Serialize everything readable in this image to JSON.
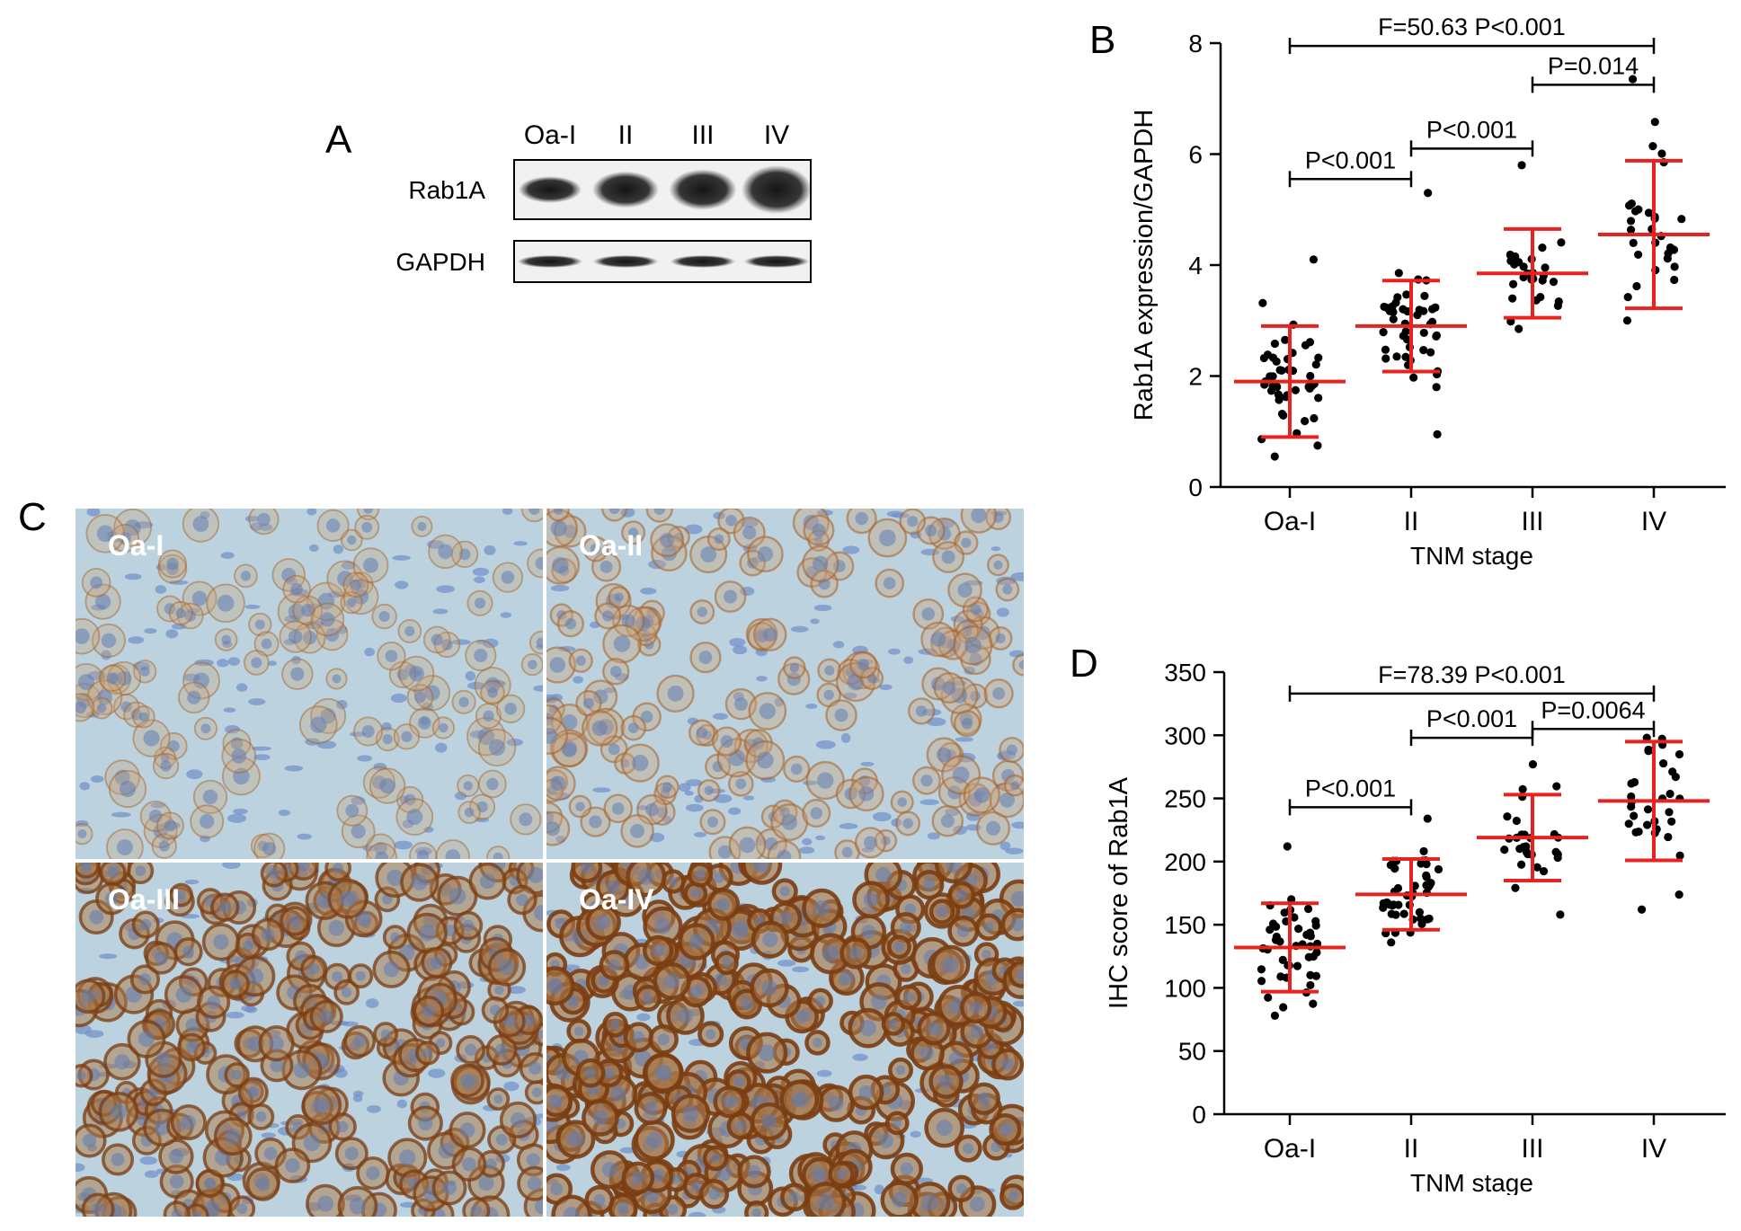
{
  "panels": {
    "A": "A",
    "B": "B",
    "C": "C",
    "D": "D"
  },
  "western_blot": {
    "lanes": [
      "Oa-I",
      "II",
      "III",
      "IV"
    ],
    "rows": [
      {
        "name": "Rab1A",
        "intensity": [
          0.45,
          0.7,
          0.8,
          1.0
        ]
      },
      {
        "name": "GAPDH",
        "intensity": [
          0.6,
          0.6,
          0.6,
          0.6
        ]
      }
    ]
  },
  "ihc_images": {
    "labels": [
      "Oa-I",
      "Oa-II",
      "Oa-III",
      "Oa-IV"
    ],
    "stain_level": [
      0.25,
      0.4,
      0.75,
      1.0
    ]
  },
  "chart_data": [
    {
      "type": "scatter",
      "panel": "B",
      "categories": [
        "Oa-I",
        "II",
        "III",
        "IV"
      ],
      "xlabel": "TNM stage",
      "ylabel": "Rab1A expression/GAPDH",
      "ylim": [
        0,
        8
      ],
      "yticks": [
        0,
        2,
        4,
        6,
        8
      ],
      "series": [
        {
          "category": "Oa-I",
          "mean": 1.9,
          "sd": 1.0,
          "range": [
            0.55,
            4.1
          ],
          "n": 46
        },
        {
          "category": "II",
          "mean": 2.9,
          "sd": 0.82,
          "range": [
            0.95,
            5.3
          ],
          "n": 45
        },
        {
          "category": "III",
          "mean": 3.85,
          "sd": 0.8,
          "range": [
            2.85,
            5.8
          ],
          "n": 28
        },
        {
          "category": "IV",
          "mean": 4.55,
          "sd": 1.33,
          "range": [
            3.0,
            7.35
          ],
          "n": 30
        }
      ],
      "annotations": [
        {
          "from": 0,
          "to": 3,
          "y": 7.95,
          "text": "F=50.63 P<0.001"
        },
        {
          "from": 2,
          "to": 3,
          "y": 7.25,
          "text": "P=0.014"
        },
        {
          "from": 1,
          "to": 2,
          "y": 6.1,
          "text": "P<0.001"
        },
        {
          "from": 0,
          "to": 1,
          "y": 5.55,
          "text": "P<0.001"
        }
      ]
    },
    {
      "type": "scatter",
      "panel": "D",
      "categories": [
        "Oa-I",
        "II",
        "III",
        "IV"
      ],
      "xlabel": "TNM stage",
      "ylabel": "IHC score of Rab1A",
      "ylim": [
        0,
        350
      ],
      "yticks": [
        0,
        50,
        100,
        150,
        200,
        250,
        300,
        350
      ],
      "series": [
        {
          "category": "Oa-I",
          "mean": 132,
          "sd": 35,
          "range": [
            78,
            212
          ],
          "n": 46
        },
        {
          "category": "II",
          "mean": 174,
          "sd": 28,
          "range": [
            136,
            234
          ],
          "n": 45
        },
        {
          "category": "III",
          "mean": 219,
          "sd": 34,
          "range": [
            158,
            277
          ],
          "n": 28
        },
        {
          "category": "IV",
          "mean": 248,
          "sd": 47,
          "range": [
            162,
            298
          ],
          "n": 33
        }
      ],
      "annotations": [
        {
          "from": 0,
          "to": 3,
          "y": 333,
          "text": "F=78.39 P<0.001"
        },
        {
          "from": 2,
          "to": 3,
          "y": 305,
          "text": "P=0.0064"
        },
        {
          "from": 1,
          "to": 2,
          "y": 298,
          "text": "P<0.001"
        },
        {
          "from": 0,
          "to": 1,
          "y": 243,
          "text": "P<0.001"
        }
      ]
    }
  ]
}
